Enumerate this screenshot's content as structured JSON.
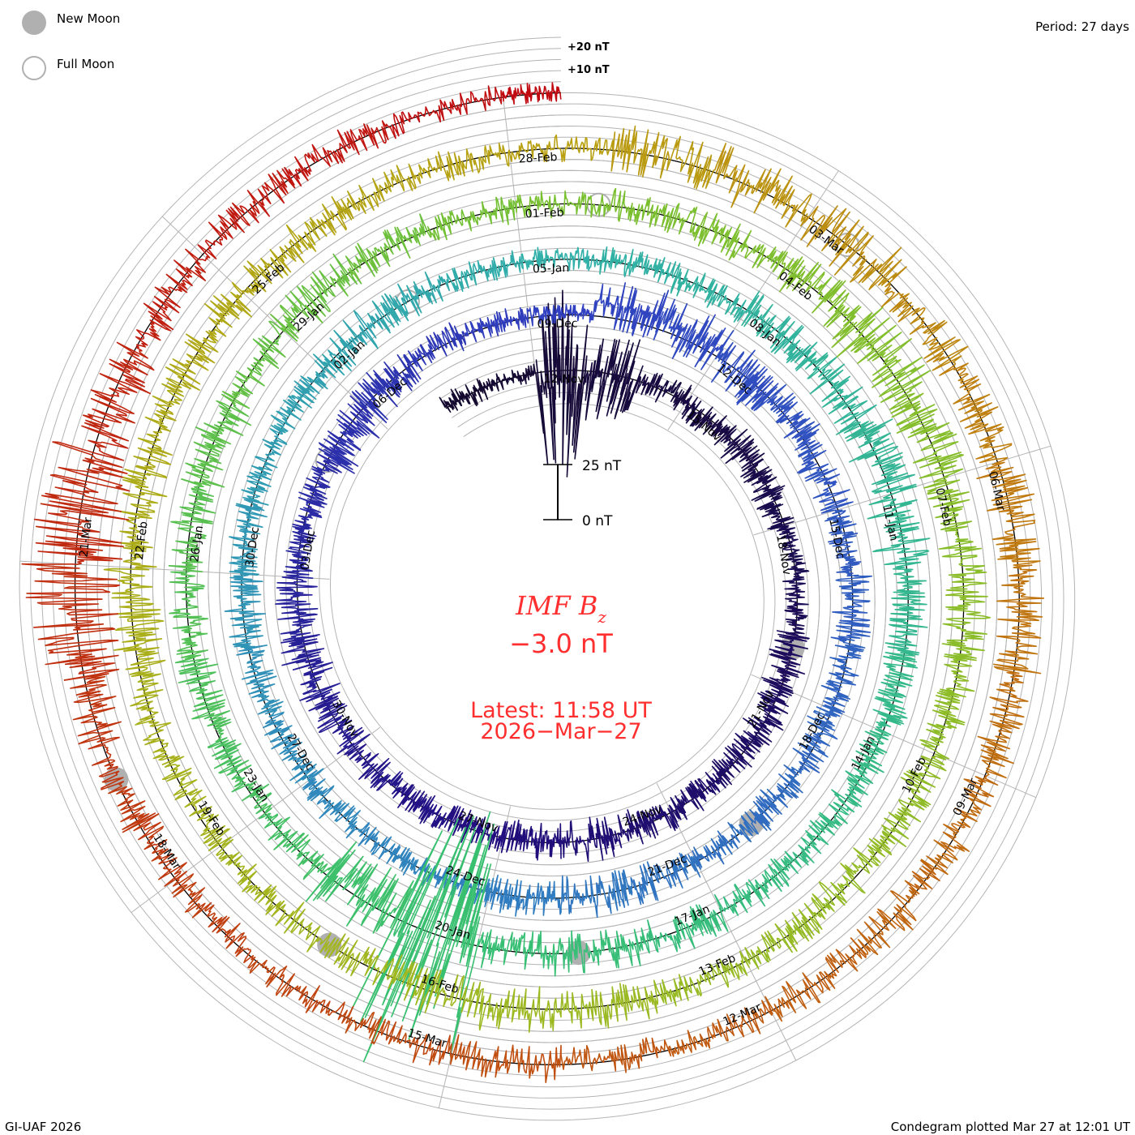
{
  "legend": {
    "new_moon_label": "New Moon",
    "full_moon_label": "Full Moon",
    "moon_color": "#b0b0b0"
  },
  "header": {
    "period": "Period: 27 days"
  },
  "footer": {
    "credit": "GI-UAF 2026",
    "plotted": "Condegram plotted Mar 27 at 12:01 UT"
  },
  "center": {
    "title_main": "IMF B",
    "title_sub": "z",
    "value": "−3.0 nT",
    "latest": "Latest: 11:58 UT",
    "latest_date": "2026−Mar−27",
    "color": "#ff2f2f"
  },
  "scale": {
    "top_label": "25 nT",
    "bottom_label": "0 nT"
  },
  "ring_labels": {
    "plus20": "+20 nT",
    "plus10": "+10 nT"
  },
  "chart_data": {
    "type": "line",
    "subtype": "condegram-spiral",
    "title": "IMF Bz",
    "units": "nT",
    "period_days": 27,
    "reference_time": "2025-11-12T12:00Z",
    "end_time": "2026-03-27T11:58Z",
    "grid_step_nT": 5,
    "nT_per_turn": 25,
    "start_date": "2025-11-10",
    "start_day_fraction": -2.4,
    "daily_min": [
      -6,
      -4,
      -48,
      -22,
      -6,
      -8,
      -10,
      -9,
      -4,
      -6,
      -10,
      -9,
      -8,
      -7,
      -9,
      -10,
      -9,
      -8,
      -7,
      -8,
      -9,
      -10,
      -9,
      -7,
      -8,
      -14,
      -12,
      -6,
      -5,
      -4,
      -6,
      -10,
      -12,
      -8,
      -10,
      -8,
      -9,
      -8,
      -9,
      -8,
      -7,
      -9,
      -10,
      -8,
      -7,
      -6,
      -7,
      -8,
      -9,
      -10,
      -8,
      -6,
      -7,
      -10,
      -8,
      -6,
      -5,
      -6,
      -8,
      -9,
      -10,
      -12,
      -14,
      -9,
      -9,
      -8,
      -7,
      -8,
      -9,
      -10,
      -10,
      -60,
      -20,
      -8,
      -9,
      -10,
      -9,
      -10,
      -12,
      -9,
      -10,
      -8,
      -7,
      -6,
      -7,
      -9,
      -10,
      -15,
      -12,
      -10,
      -9,
      -8,
      -9,
      -10,
      -8,
      -7,
      -9,
      -10,
      -11,
      -9,
      -7,
      -8,
      -9,
      -14,
      -12,
      -10,
      -10,
      -9,
      -8,
      -7,
      -6,
      -10,
      -12,
      -14,
      -10,
      -9,
      -11,
      -10,
      -9,
      -8,
      -9,
      -8,
      -7,
      -8,
      -9,
      -8,
      -7,
      -8,
      -10,
      -12,
      -20,
      -22,
      -15,
      -10,
      -8,
      -7,
      -6,
      -4
    ],
    "daily_max": [
      6,
      4,
      36,
      18,
      8,
      6,
      8,
      7,
      6,
      5,
      8,
      9,
      7,
      7,
      8,
      10,
      8,
      7,
      7,
      8,
      9,
      12,
      10,
      6,
      6,
      8,
      10,
      8,
      6,
      5,
      18,
      16,
      12,
      10,
      8,
      6,
      9,
      7,
      8,
      8,
      7,
      9,
      10,
      9,
      7,
      6,
      8,
      7,
      6,
      8,
      7,
      6,
      7,
      10,
      9,
      6,
      6,
      7,
      6,
      10,
      11,
      14,
      12,
      9,
      8,
      8,
      7,
      8,
      10,
      10,
      10,
      65,
      15,
      8,
      8,
      9,
      8,
      9,
      10,
      8,
      11,
      9,
      6,
      6,
      8,
      8,
      12,
      16,
      12,
      10,
      12,
      9,
      9,
      8,
      8,
      7,
      10,
      12,
      10,
      8,
      7,
      6,
      8,
      12,
      10,
      9,
      10,
      9,
      8,
      7,
      6,
      12,
      14,
      15,
      10,
      9,
      12,
      12,
      10,
      9,
      10,
      8,
      7,
      6,
      8,
      8,
      7,
      6,
      8,
      10,
      24,
      20,
      10,
      8,
      8,
      8,
      6,
      5
    ],
    "latest_value": -3.0,
    "color_stops": [
      {
        "day": 0,
        "color": "#140a30"
      },
      {
        "day": 8,
        "color": "#1a0c50"
      },
      {
        "day": 17,
        "color": "#220e80"
      },
      {
        "day": 29,
        "color": "#3040c0"
      },
      {
        "day": 44,
        "color": "#3080c0"
      },
      {
        "day": 56,
        "color": "#30b0a8"
      },
      {
        "day": 71,
        "color": "#38c070"
      },
      {
        "day": 83,
        "color": "#78c030"
      },
      {
        "day": 98,
        "color": "#a0b820"
      },
      {
        "day": 110,
        "color": "#b8a010"
      },
      {
        "day": 116,
        "color": "#c07a10"
      },
      {
        "day": 125,
        "color": "#c04a10"
      },
      {
        "day": 137,
        "color": "#c00a10"
      }
    ],
    "date_labels": [
      "12-Nov",
      "15-Nov",
      "18-Nov",
      "21-Nov",
      "24-Nov",
      "27-Nov",
      "30-Nov",
      "03-Dec",
      "06-Dec",
      "09-Dec",
      "12-Dec",
      "15-Dec",
      "18-Dec",
      "21-Dec",
      "24-Dec",
      "27-Dec",
      "30-Dec",
      "02-Jan",
      "05-Jan",
      "08-Jan",
      "11-Jan",
      "14-Jan",
      "17-Jan",
      "20-Jan",
      "23-Jan",
      "26-Jan",
      "29-Jan",
      "01-Feb",
      "04-Feb",
      "07-Feb",
      "10-Feb",
      "13-Feb",
      "16-Feb",
      "19-Feb",
      "22-Feb",
      "25-Feb",
      "28-Feb",
      "03-Mar",
      "06-Mar",
      "09-Mar",
      "12-Mar",
      "15-Mar",
      "18-Mar",
      "21-Mar"
    ],
    "date_label_interval_days": 3,
    "new_moons": [
      "2025-11-20T06:00Z",
      "2025-12-20T01:00Z",
      "2026-01-18T19:00Z",
      "2026-02-17T12:00Z",
      "2026-03-19T01:00Z"
    ],
    "full_moons": [
      "2025-12-04T23:00Z",
      "2026-01-03T10:00Z",
      "2026-02-01T22:00Z",
      "2026-03-03T11:00Z"
    ]
  }
}
